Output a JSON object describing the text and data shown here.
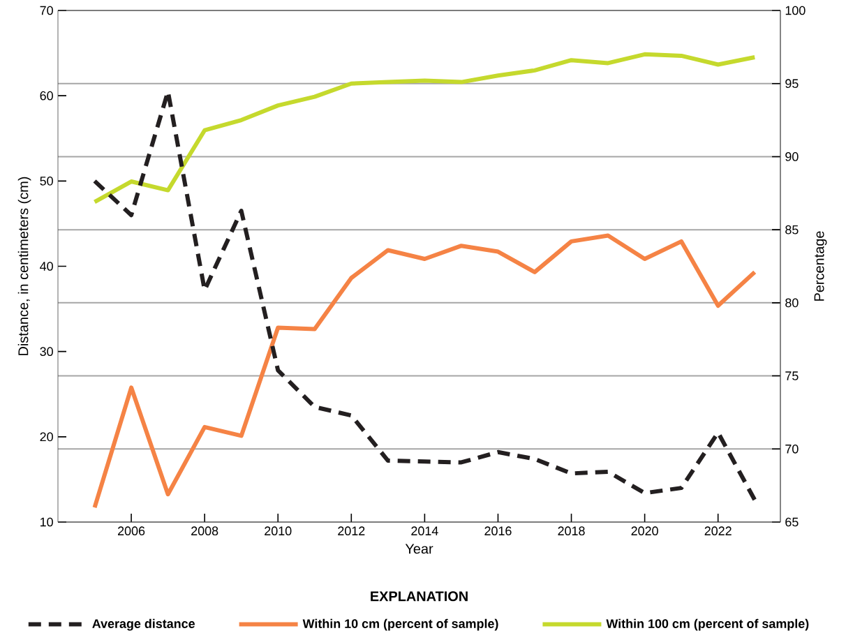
{
  "chart_data": {
    "type": "line",
    "xlabel": "Year",
    "ylabel": "Distance, in centimeters (cm)",
    "y2label": "Percentage",
    "legend_title": "EXPLANATION",
    "legend": "bottom",
    "grid": "y2",
    "marker": "none",
    "x": [
      2005,
      2006,
      2007,
      2008,
      2009,
      2010,
      2011,
      2012,
      2013,
      2014,
      2015,
      2016,
      2017,
      2018,
      2019,
      2020,
      2021,
      2022,
      2023
    ],
    "xlim": [
      2004,
      2023.7
    ],
    "xticks": [
      2006,
      2008,
      2010,
      2012,
      2014,
      2016,
      2018,
      2020,
      2022
    ],
    "ylim": [
      10,
      70
    ],
    "yticks": [
      10,
      20,
      30,
      40,
      50,
      60,
      70
    ],
    "y2lim": [
      65,
      100
    ],
    "y2ticks": [
      65,
      70,
      75,
      80,
      85,
      90,
      95,
      100
    ],
    "series": [
      {
        "name": "Average distance",
        "color": "#231f20",
        "line_style": "dashed",
        "values": [
          50,
          46,
          60.5,
          37.2,
          46.5,
          27.8,
          23.5,
          22.5,
          17.2,
          17.1,
          17,
          18.2,
          17.4,
          15.7,
          15.9,
          13.4,
          14,
          20.5,
          12.6
        ]
      },
      {
        "name": "Within 10 cm (percent of sample)",
        "color": "#f58345",
        "line_style": "solid",
        "axis": "y2",
        "values": [
          66,
          74.2,
          66.9,
          71.5,
          70.9,
          78.3,
          78.2,
          81.7,
          83.6,
          83,
          83.9,
          83.5,
          82.1,
          84.2,
          84.6,
          83,
          84.2,
          79.8,
          82.1
        ]
      },
      {
        "name": "Within 100 cm (percent of sample)",
        "color": "#c5d92d",
        "line_style": "solid",
        "axis": "y2",
        "values": [
          86.9,
          88.3,
          87.7,
          91.8,
          92.5,
          93.5,
          94.1,
          95,
          95.1,
          95.2,
          95.1,
          95.55,
          95.9,
          96.6,
          96.4,
          97,
          96.9,
          96.3,
          96.8
        ]
      }
    ]
  }
}
